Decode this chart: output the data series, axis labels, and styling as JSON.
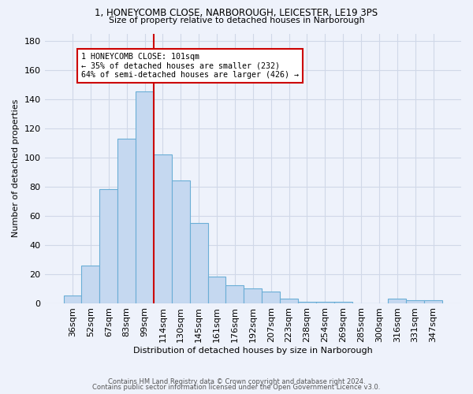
{
  "title": "1, HONEYCOMB CLOSE, NARBOROUGH, LEICESTER, LE19 3PS",
  "subtitle": "Size of property relative to detached houses in Narborough",
  "xlabel": "Distribution of detached houses by size in Narborough",
  "ylabel": "Number of detached properties",
  "categories": [
    "36sqm",
    "52sqm",
    "67sqm",
    "83sqm",
    "99sqm",
    "114sqm",
    "130sqm",
    "145sqm",
    "161sqm",
    "176sqm",
    "192sqm",
    "207sqm",
    "223sqm",
    "238sqm",
    "254sqm",
    "269sqm",
    "285sqm",
    "300sqm",
    "316sqm",
    "331sqm",
    "347sqm"
  ],
  "values": [
    5,
    26,
    78,
    113,
    145,
    102,
    84,
    55,
    18,
    12,
    10,
    8,
    3,
    1,
    1,
    1,
    0,
    0,
    3,
    2,
    2
  ],
  "bar_color": "#c5d8f0",
  "bar_edge_color": "#6aaed6",
  "property_line_index": 4,
  "property_line_color": "#cc0000",
  "annotation_line1": "1 HONEYCOMB CLOSE: 101sqm",
  "annotation_line2": "← 35% of detached houses are smaller (232)",
  "annotation_line3": "64% of semi-detached houses are larger (426) →",
  "annotation_box_color": "#ffffff",
  "annotation_box_edge": "#cc0000",
  "ylim": [
    0,
    185
  ],
  "yticks": [
    0,
    20,
    40,
    60,
    80,
    100,
    120,
    140,
    160,
    180
  ],
  "grid_color": "#d0d8e8",
  "bg_color": "#eef2fb",
  "footer1": "Contains HM Land Registry data © Crown copyright and database right 2024.",
  "footer2": "Contains public sector information licensed under the Open Government Licence v3.0."
}
